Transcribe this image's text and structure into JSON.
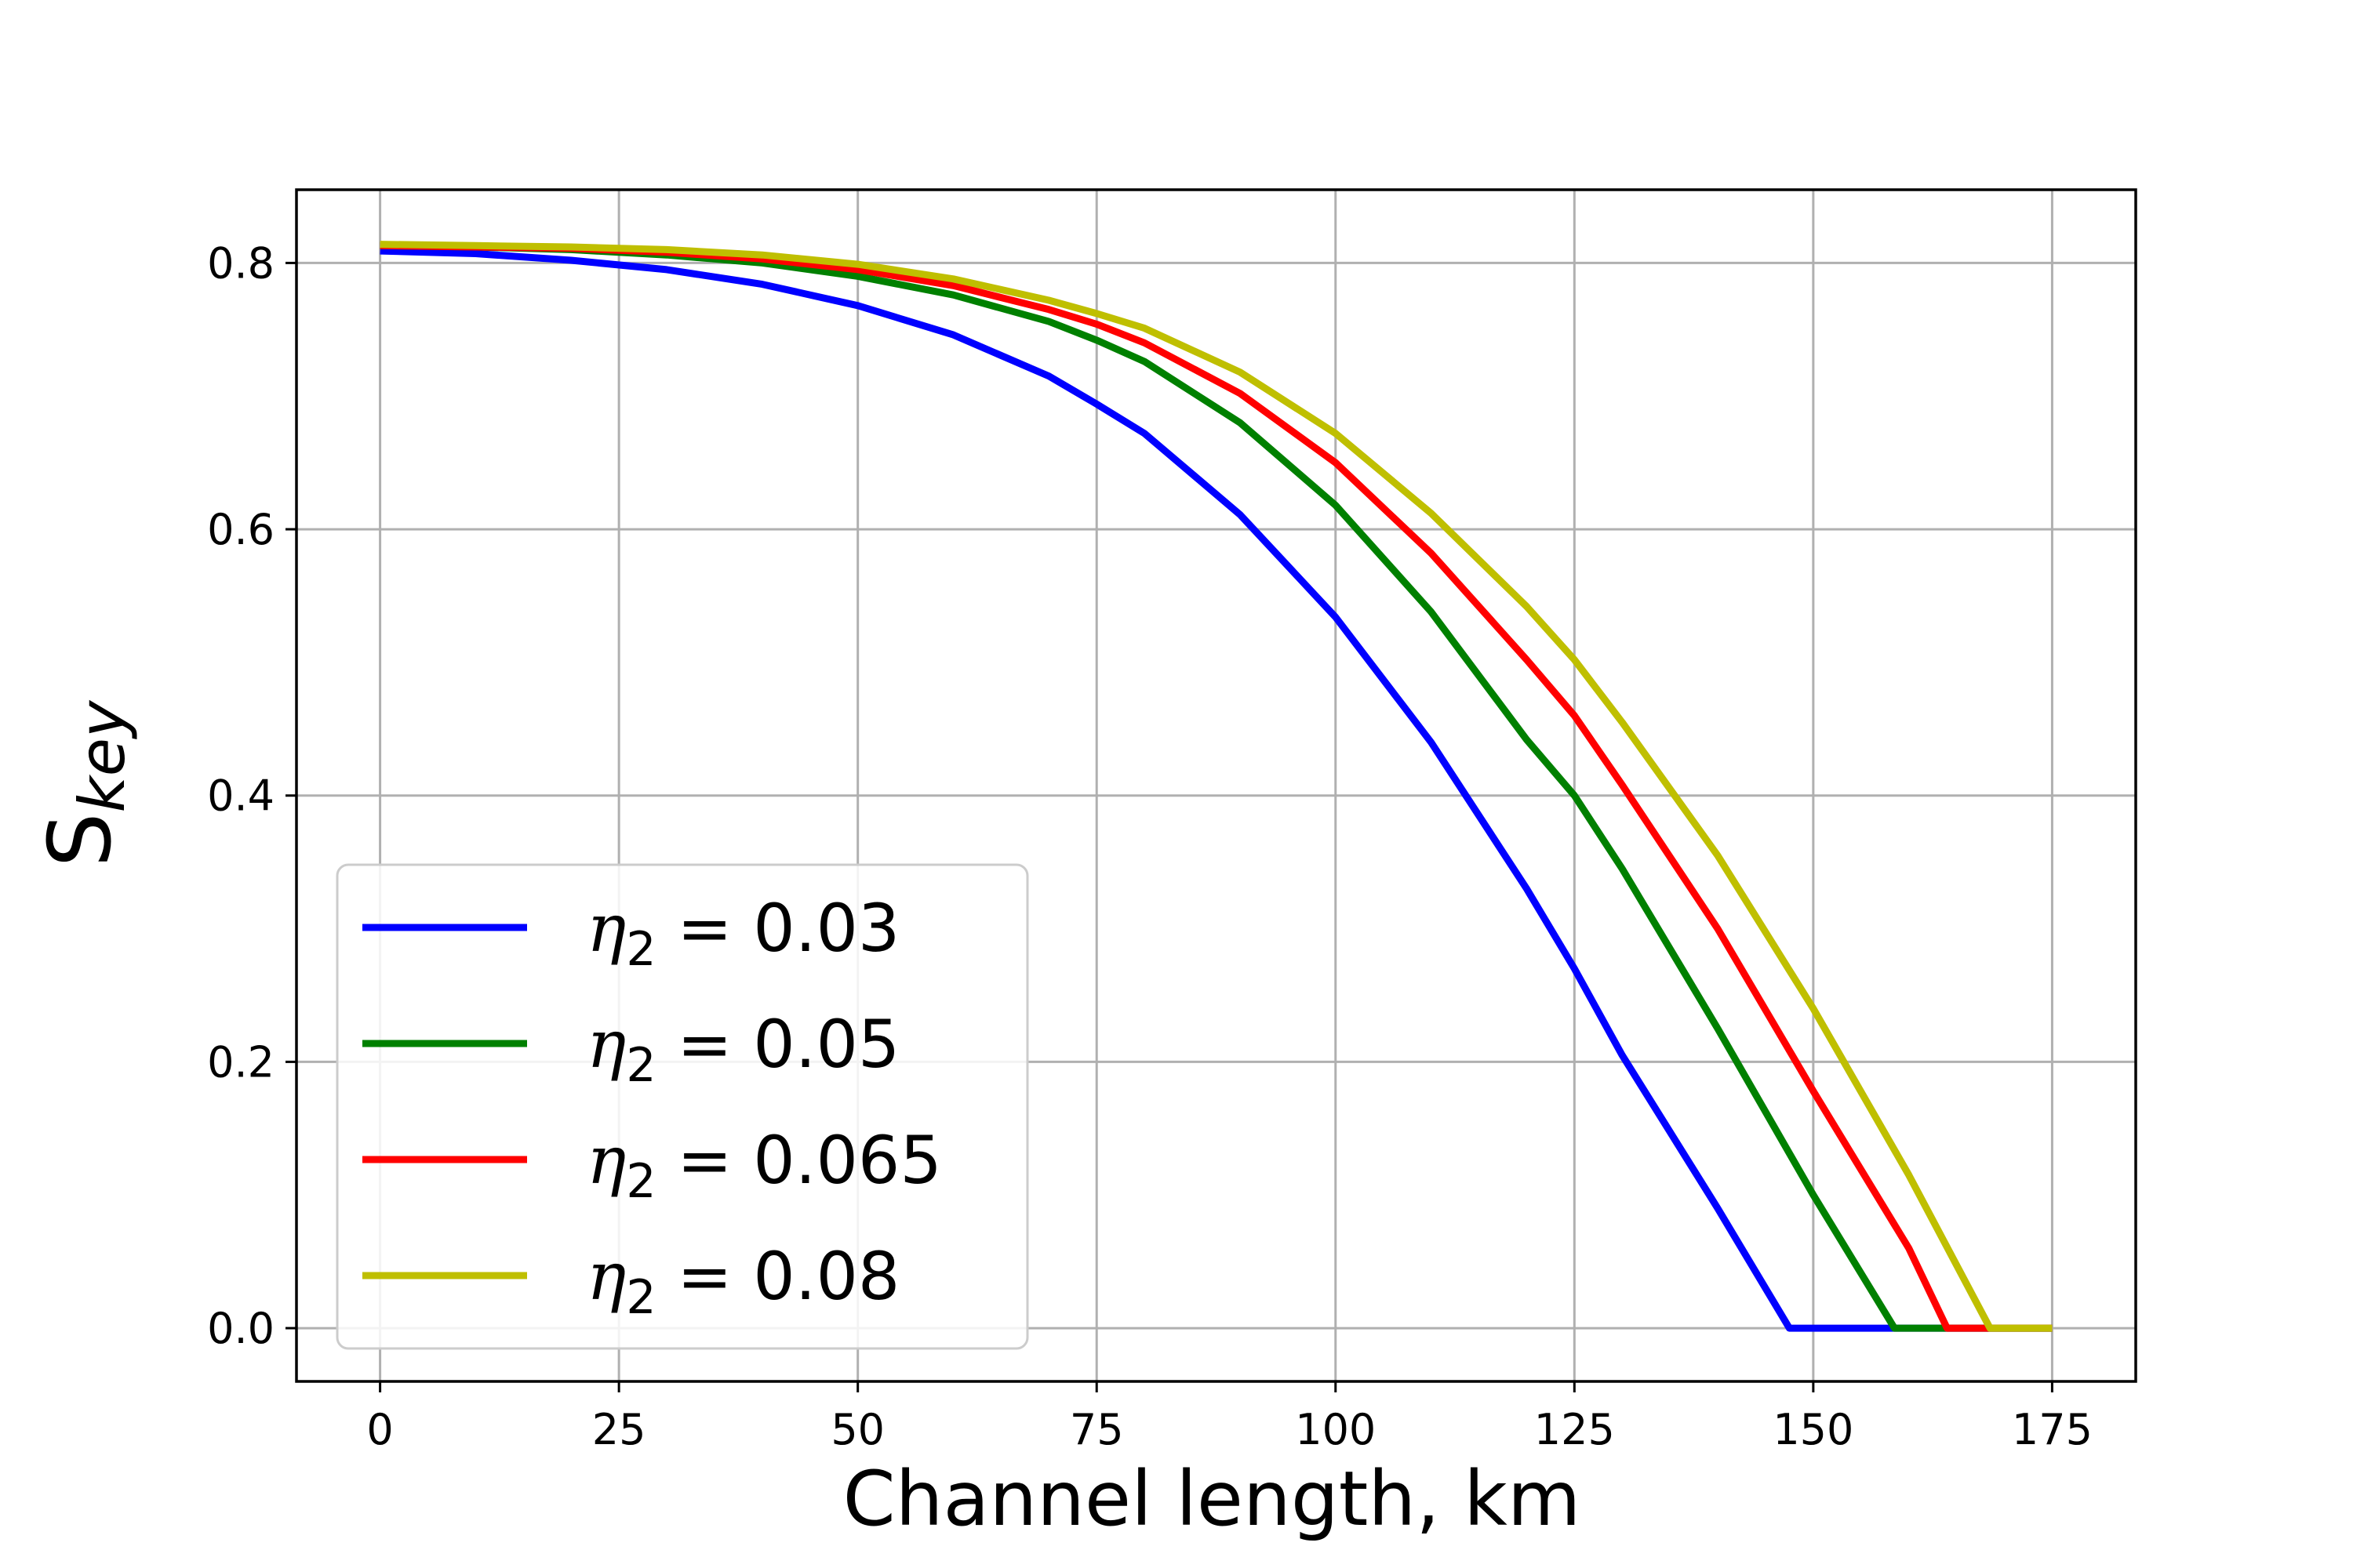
{
  "chart_data": {
    "type": "line",
    "xlabel": "Channel length, km",
    "ylabel": {
      "main": "S",
      "sub": "key"
    },
    "xlim": [
      -8.75,
      183.75
    ],
    "ylim": [
      -0.04,
      0.855
    ],
    "xticks": [
      0,
      25,
      50,
      75,
      100,
      125,
      150,
      175
    ],
    "xtick_labels": [
      "0",
      "25",
      "50",
      "75",
      "100",
      "125",
      "150",
      "175"
    ],
    "yticks": [
      0.0,
      0.2,
      0.4,
      0.6,
      0.8
    ],
    "ytick_labels": [
      "0.0",
      "0.2",
      "0.4",
      "0.6",
      "0.8"
    ],
    "grid": true,
    "legend_position": "lower-left",
    "series": [
      {
        "name": "0.03",
        "legend_label": {
          "symbol": "η",
          "sub": "2",
          "value": " = 0.03"
        },
        "color": "#0000ff",
        "x": [
          0,
          10,
          20,
          30,
          40,
          50,
          60,
          70,
          75,
          80,
          90,
          100,
          110,
          120,
          125,
          130,
          140,
          147.5,
          150,
          160,
          170,
          175
        ],
        "y": [
          0.809,
          0.807,
          0.802,
          0.795,
          0.784,
          0.768,
          0.746,
          0.715,
          0.694,
          0.672,
          0.611,
          0.534,
          0.44,
          0.33,
          0.27,
          0.205,
          0.09,
          0.0,
          0.0,
          0.0,
          0.0,
          0.0
        ]
      },
      {
        "name": "0.05",
        "legend_label": {
          "symbol": "η",
          "sub": "2",
          "value": " = 0.05"
        },
        "color": "#008000",
        "x": [
          0,
          10,
          20,
          30,
          40,
          50,
          60,
          70,
          75,
          80,
          90,
          100,
          110,
          120,
          125,
          130,
          140,
          150,
          158.5,
          160,
          170,
          175
        ],
        "y": [
          0.813,
          0.812,
          0.81,
          0.806,
          0.8,
          0.79,
          0.776,
          0.756,
          0.742,
          0.726,
          0.68,
          0.618,
          0.538,
          0.442,
          0.4,
          0.345,
          0.225,
          0.1,
          0.0,
          0.0,
          0.0,
          0.0
        ]
      },
      {
        "name": "0.065",
        "legend_label": {
          "symbol": "η",
          "sub": "2",
          "value": " = 0.065"
        },
        "color": "#ff0000",
        "x": [
          0,
          10,
          20,
          30,
          40,
          50,
          60,
          70,
          75,
          80,
          90,
          100,
          110,
          120,
          125,
          130,
          140,
          150,
          160,
          164,
          170,
          175
        ],
        "y": [
          0.813,
          0.812,
          0.811,
          0.808,
          0.803,
          0.795,
          0.783,
          0.765,
          0.754,
          0.74,
          0.702,
          0.65,
          0.582,
          0.502,
          0.46,
          0.408,
          0.3,
          0.178,
          0.06,
          0.0,
          0.0,
          0.0
        ]
      },
      {
        "name": "0.08",
        "legend_label": {
          "symbol": "η",
          "sub": "2",
          "value": " = 0.08"
        },
        "color": "#bfbf00",
        "x": [
          0,
          10,
          20,
          30,
          40,
          50,
          60,
          70,
          75,
          80,
          90,
          100,
          110,
          120,
          125,
          130,
          140,
          150,
          160,
          168.5,
          170,
          175
        ],
        "y": [
          0.814,
          0.813,
          0.812,
          0.81,
          0.806,
          0.799,
          0.788,
          0.772,
          0.762,
          0.751,
          0.718,
          0.672,
          0.612,
          0.542,
          0.502,
          0.455,
          0.355,
          0.24,
          0.115,
          0.0,
          0.0,
          0.0
        ]
      }
    ]
  }
}
